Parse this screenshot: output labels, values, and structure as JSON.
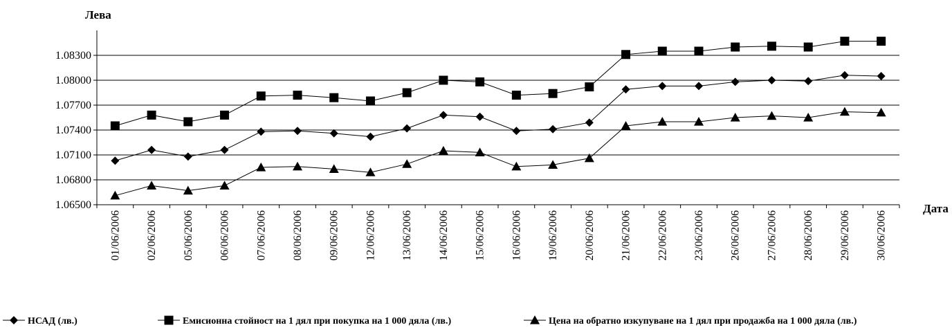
{
  "chart_data": {
    "type": "line",
    "ylabel": "Лева",
    "xlabel": "Дата",
    "ylim": [
      1.065,
      1.086
    ],
    "yticks": [
      "1.06500",
      "1.06800",
      "1.07100",
      "1.07400",
      "1.07700",
      "1.08000",
      "1.08300"
    ],
    "grid": true,
    "legend_position": "bottom",
    "categories": [
      "01/06/2006",
      "02/06/2006",
      "05/06/2006",
      "06/06/2006",
      "07/06/2006",
      "08/06/2006",
      "09/06/2006",
      "12/06/2006",
      "13/06/2006",
      "14/06/2006",
      "15/06/2006",
      "16/06/2006",
      "19/06/2006",
      "20/06/2006",
      "21/06/2006",
      "22/06/2006",
      "23/06/2006",
      "26/06/2006",
      "27/06/2006",
      "28/06/2006",
      "29/06/2006",
      "30/06/2006"
    ],
    "series": [
      {
        "name": "НСАД (лв.)",
        "marker": "diamond",
        "values": [
          1.0703,
          1.0716,
          1.0708,
          1.0716,
          1.0738,
          1.0739,
          1.0736,
          1.0732,
          1.0742,
          1.0758,
          1.0756,
          1.0739,
          1.0741,
          1.0749,
          1.0789,
          1.0793,
          1.0793,
          1.0798,
          1.08,
          1.0799,
          1.0806,
          1.0805
        ]
      },
      {
        "name": "Емисионна стойност на 1 дял при покупка на 1 000 дяла (лв.)",
        "marker": "square",
        "values": [
          1.0745,
          1.0758,
          1.075,
          1.0758,
          1.0781,
          1.0782,
          1.0779,
          1.0775,
          1.0785,
          1.08,
          1.0798,
          1.0782,
          1.0784,
          1.0792,
          1.0831,
          1.0835,
          1.0835,
          1.084,
          1.0841,
          1.084,
          1.0847,
          1.0847
        ]
      },
      {
        "name": "Цена на обратно изкупуване на 1 дял при продажба на 1 000 дяла (лв.)",
        "marker": "triangle",
        "values": [
          1.0661,
          1.0673,
          1.0667,
          1.0673,
          1.0695,
          1.0696,
          1.0693,
          1.0689,
          1.0699,
          1.0715,
          1.0713,
          1.0696,
          1.0698,
          1.0706,
          1.0745,
          1.075,
          1.075,
          1.0755,
          1.0757,
          1.0755,
          1.0762,
          1.0761
        ]
      }
    ]
  }
}
